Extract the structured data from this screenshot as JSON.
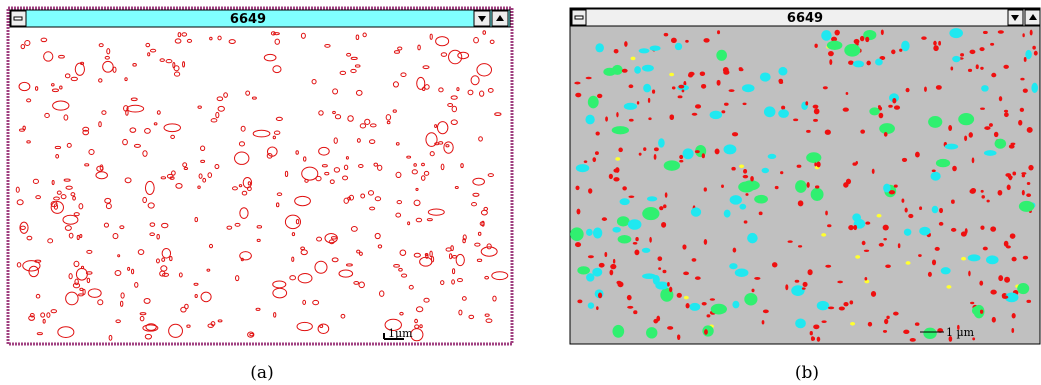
{
  "panels": [
    {
      "title": "6649",
      "scale_label": "1µm",
      "caption": "(a)"
    },
    {
      "title": "6649",
      "scale_label": "1 µm",
      "caption": "(b)"
    }
  ]
}
